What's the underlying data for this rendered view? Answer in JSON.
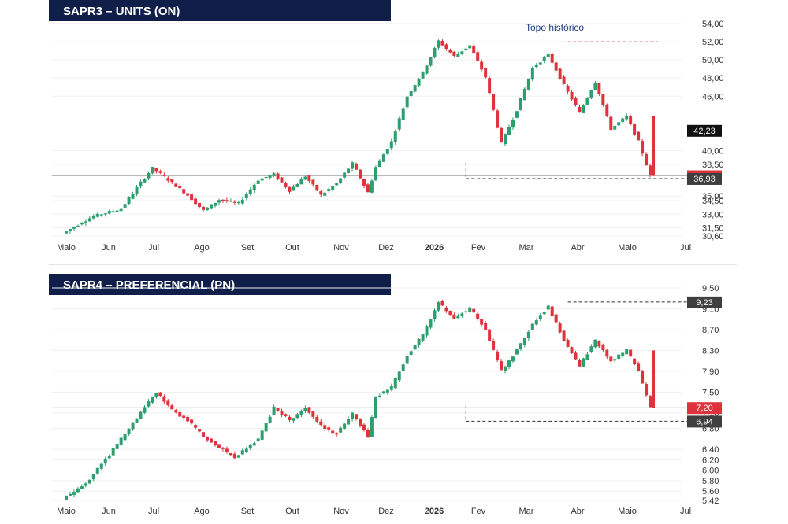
{
  "chart_data": [
    {
      "type": "candlestick",
      "title": "SAPR3 – UNITS (ON)",
      "months": [
        "Maio",
        "Jun",
        "Jul",
        "Ago",
        "Set",
        "Out",
        "Nov",
        "Dez",
        "2026",
        "Fev",
        "Mar",
        "Abr",
        "Maio",
        "Jul"
      ],
      "y_ticks": [
        "54,00",
        "52,00",
        "50,00",
        "48,00",
        "46,00",
        "40,00",
        "38,50",
        "35,00",
        "34,50",
        "33,00",
        "31,50",
        "30,60"
      ],
      "y_tick_values": [
        54,
        52,
        50,
        48,
        46,
        40,
        38.5,
        35,
        34.5,
        33,
        31.5,
        30.6
      ],
      "ylim": [
        30.6,
        54
      ],
      "price_path": [
        [
          0,
          30.9
        ],
        [
          8,
          32.8
        ],
        [
          15,
          33.6
        ],
        [
          20,
          36.5
        ],
        [
          23,
          38.1
        ],
        [
          27,
          36.8
        ],
        [
          32,
          35.1
        ],
        [
          36,
          33.4
        ],
        [
          40,
          34.6
        ],
        [
          45,
          34.2
        ],
        [
          50,
          36.8
        ],
        [
          54,
          37.4
        ],
        [
          58,
          35.6
        ],
        [
          62,
          37.2
        ],
        [
          66,
          35.1
        ],
        [
          70,
          36.4
        ],
        [
          74,
          38.6
        ],
        [
          78,
          35.4
        ],
        [
          80,
          38.2
        ],
        [
          84,
          41.0
        ],
        [
          88,
          46.0
        ],
        [
          92,
          48.6
        ],
        [
          96,
          52.1
        ],
        [
          100,
          50.4
        ],
        [
          104,
          51.6
        ],
        [
          108,
          48.1
        ],
        [
          112,
          40.8
        ],
        [
          116,
          44.5
        ],
        [
          120,
          49.1
        ],
        [
          124,
          50.6
        ],
        [
          128,
          47.2
        ],
        [
          132,
          44.2
        ],
        [
          136,
          47.6
        ],
        [
          140,
          42.4
        ],
        [
          144,
          43.8
        ],
        [
          147,
          41.0
        ],
        [
          150,
          37.2
        ]
      ],
      "labels": [
        {
          "value": "42,23",
          "y": 42.23,
          "color": "#111111"
        },
        {
          "value": "37,23",
          "y": 37.23,
          "color": "#e0323c"
        },
        {
          "value": "36,93",
          "y": 36.93,
          "color": "#3f3f3f"
        }
      ],
      "reference_y": 37.23,
      "support_y": 36.93,
      "peak_y": 52.0,
      "annotation": "Topo histórico"
    },
    {
      "type": "candlestick",
      "title": "SAPR4 – PREFERENCIAL (PN)",
      "months": [
        "Maio",
        "Jun",
        "Jul",
        "Ago",
        "Set",
        "Out",
        "Nov",
        "Dez",
        "2026",
        "Fev",
        "Mar",
        "Abr",
        "Maio",
        "Jul"
      ],
      "y_ticks": [
        "9,50",
        "9,10",
        "8,70",
        "8,30",
        "7,90",
        "7,50",
        "7,10",
        "6,80",
        "6,40",
        "6,20",
        "6,00",
        "5,80",
        "5,60",
        "5,42"
      ],
      "y_tick_values": [
        9.5,
        9.1,
        8.7,
        8.3,
        7.9,
        7.5,
        7.1,
        6.8,
        6.4,
        6.2,
        6.0,
        5.8,
        5.6,
        5.42
      ],
      "ylim": [
        5.42,
        9.5
      ],
      "price_path": [
        [
          0,
          5.45
        ],
        [
          6,
          5.75
        ],
        [
          12,
          6.3
        ],
        [
          17,
          6.8
        ],
        [
          21,
          7.2
        ],
        [
          24,
          7.5
        ],
        [
          28,
          7.15
        ],
        [
          32,
          6.95
        ],
        [
          36,
          6.65
        ],
        [
          40,
          6.45
        ],
        [
          44,
          6.25
        ],
        [
          50,
          6.6
        ],
        [
          54,
          7.2
        ],
        [
          58,
          6.95
        ],
        [
          62,
          7.2
        ],
        [
          66,
          6.85
        ],
        [
          70,
          6.7
        ],
        [
          74,
          7.1
        ],
        [
          78,
          6.65
        ],
        [
          80,
          7.4
        ],
        [
          84,
          7.6
        ],
        [
          88,
          8.2
        ],
        [
          92,
          8.6
        ],
        [
          96,
          9.22
        ],
        [
          100,
          8.9
        ],
        [
          104,
          9.12
        ],
        [
          108,
          8.7
        ],
        [
          112,
          7.9
        ],
        [
          116,
          8.3
        ],
        [
          120,
          8.8
        ],
        [
          124,
          9.15
        ],
        [
          128,
          8.5
        ],
        [
          132,
          8.0
        ],
        [
          136,
          8.5
        ],
        [
          140,
          8.1
        ],
        [
          144,
          8.3
        ],
        [
          147,
          7.9
        ],
        [
          150,
          7.2
        ]
      ],
      "labels": [
        {
          "value": "9,23",
          "y": 9.23,
          "color": "#3f3f3f"
        },
        {
          "value": "7,20",
          "y": 7.2,
          "color": "#e0323c"
        },
        {
          "value": "6,94",
          "y": 6.94,
          "color": "#3f3f3f"
        }
      ],
      "reference_y": 7.2,
      "support_y": 6.94,
      "peak_y": 9.23
    }
  ],
  "colors": {
    "up": "#2e9e6e",
    "down": "#e0323c",
    "title_bar": "#0f1f4a"
  }
}
